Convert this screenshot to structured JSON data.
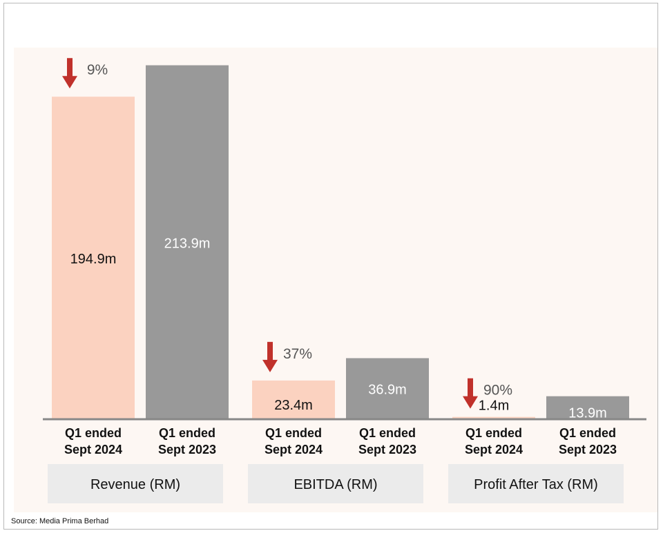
{
  "source": "Source: Media Prima Berhad",
  "colors": {
    "current": "#fbd2c0",
    "prior": "#999999",
    "arrow": "#c0312b",
    "baseline": "#888888",
    "group_label_bg": "#ebebeb",
    "page_bg": "#fdf7f3"
  },
  "chart_data": {
    "type": "bar",
    "series": [
      {
        "key": "Q1 ended Sept 2024",
        "line1": "Q1 ended",
        "line2": "Sept 2024"
      },
      {
        "key": "Q1 ended Sept 2023",
        "line1": "Q1 ended",
        "line2": "Sept 2023"
      }
    ],
    "groups": [
      {
        "name": "Revenue (RM)",
        "values": [
          194.9,
          213.9
        ],
        "labels": [
          "194.9m",
          "213.9m"
        ],
        "change": "9%",
        "change_direction": "down"
      },
      {
        "name": "EBITDA (RM)",
        "values": [
          23.4,
          36.9
        ],
        "labels": [
          "23.4m",
          "36.9m"
        ],
        "change": "37%",
        "change_direction": "down"
      },
      {
        "name": "Profit After Tax (RM)",
        "values": [
          1.4,
          13.9
        ],
        "labels": [
          "1.4m",
          "13.9m"
        ],
        "change": "90%",
        "change_direction": "down"
      }
    ],
    "axis": "none",
    "legend": "none",
    "grid": false
  }
}
